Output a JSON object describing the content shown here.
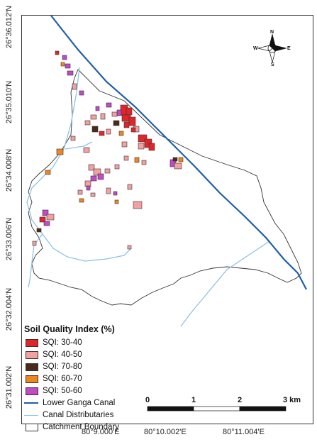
{
  "axes": {
    "y_ticks": [
      "26°36.012'N",
      "26°35.010'N",
      "26°34.008'N",
      "26°33.006'N",
      "26°32.004'N",
      "26°31.002'N"
    ],
    "x_ticks": [
      "80°9.000'E",
      "80°10.002'E",
      "80°11.004'E"
    ]
  },
  "legend": {
    "title": "Soil Quality Index (%)",
    "items": [
      {
        "label": "SQI: 30-40",
        "color": "#e0262b",
        "kind": "patch"
      },
      {
        "label": "SQI: 40-50",
        "color": "#f2a0a2",
        "kind": "patch"
      },
      {
        "label": "SQI: 70-80",
        "color": "#4a2a18",
        "kind": "patch"
      },
      {
        "label": "SQI: 60-70",
        "color": "#f0861e",
        "kind": "patch"
      },
      {
        "label": "SQI: 50-60",
        "color": "#c04ac8",
        "kind": "patch"
      },
      {
        "label": "Lower Ganga Canal",
        "color": "#1f5fa8",
        "kind": "line"
      },
      {
        "label": "Canal Distributaries",
        "color": "#8ec3e0",
        "kind": "line"
      },
      {
        "label": "Catchment Boundary",
        "color": "#ffffff",
        "kind": "patch"
      }
    ]
  },
  "scale_bar": {
    "labels": [
      "0",
      "1",
      "2",
      "3 km"
    ]
  },
  "north_arrow": {
    "labels": {
      "n": "N",
      "s": "S",
      "e": "E",
      "w": "W"
    }
  },
  "colors": {
    "sqi_30_40": "#e0262b",
    "sqi_40_50": "#f2a0a2",
    "sqi_70_80": "#4a2a18",
    "sqi_60_70": "#f0861e",
    "sqi_50_60": "#c04ac8",
    "canal": "#1f5fa8",
    "distributary": "#8ec3e0"
  }
}
